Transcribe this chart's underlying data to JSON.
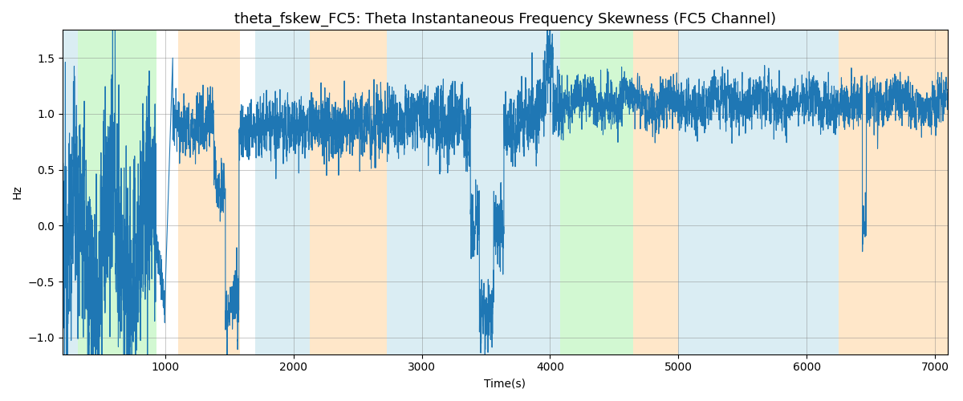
{
  "title": "theta_fskew_FC5: Theta Instantaneous Frequency Skewness (FC5 Channel)",
  "xlabel": "Time(s)",
  "ylabel": "Hz",
  "xlim": [
    200,
    7100
  ],
  "ylim": [
    -1.15,
    1.75
  ],
  "line_color": "#1f77b4",
  "line_width": 0.8,
  "background_color": "#ffffff",
  "bands": [
    {
      "xmin": 200,
      "xmax": 320,
      "color": "#add8e6",
      "alpha": 0.45
    },
    {
      "xmin": 320,
      "xmax": 930,
      "color": "#90ee90",
      "alpha": 0.4
    },
    {
      "xmin": 1100,
      "xmax": 1580,
      "color": "#ffd59e",
      "alpha": 0.55
    },
    {
      "xmin": 1700,
      "xmax": 2130,
      "color": "#add8e6",
      "alpha": 0.45
    },
    {
      "xmin": 2130,
      "xmax": 2730,
      "color": "#ffd59e",
      "alpha": 0.55
    },
    {
      "xmin": 2730,
      "xmax": 3950,
      "color": "#add8e6",
      "alpha": 0.45
    },
    {
      "xmin": 3950,
      "xmax": 4080,
      "color": "#add8e6",
      "alpha": 0.45
    },
    {
      "xmin": 4080,
      "xmax": 4650,
      "color": "#90ee90",
      "alpha": 0.4
    },
    {
      "xmin": 4650,
      "xmax": 5000,
      "color": "#ffd59e",
      "alpha": 0.55
    },
    {
      "xmin": 5000,
      "xmax": 6250,
      "color": "#add8e6",
      "alpha": 0.45
    },
    {
      "xmin": 6250,
      "xmax": 6550,
      "color": "#ffd59e",
      "alpha": 0.55
    },
    {
      "xmin": 6550,
      "xmax": 7100,
      "color": "#ffd59e",
      "alpha": 0.55
    }
  ],
  "title_fontsize": 13,
  "xticks": [
    1000,
    2000,
    3000,
    4000,
    5000,
    6000,
    7000
  ]
}
